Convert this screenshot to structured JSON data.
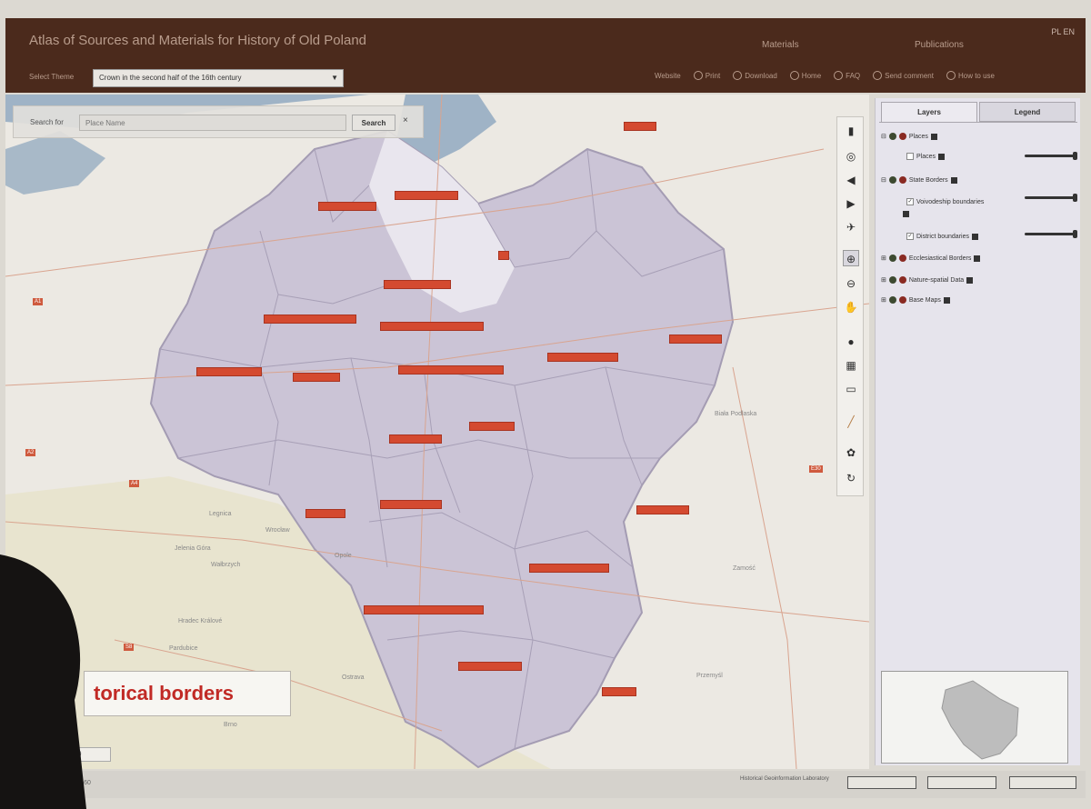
{
  "header": {
    "title": "Atlas of Sources and Materials for History of Old Poland",
    "nav": [
      "Materials",
      "Publications"
    ],
    "window_controls": "PL EN",
    "theme_label": "Select Theme",
    "theme_value": "Crown in the second half of the 16th century",
    "toolbar": [
      "Website",
      "Print",
      "Download",
      "Home",
      "FAQ",
      "Send comment",
      "How to use"
    ]
  },
  "search": {
    "label": "Search for",
    "placeholder": "Place Name",
    "button": "Search",
    "close": "×"
  },
  "map": {
    "place_labels": [
      "",
      "",
      "",
      "",
      "",
      "",
      "",
      "",
      "",
      "",
      "",
      "",
      "",
      "",
      "",
      "",
      "",
      "",
      "",
      "",
      ""
    ],
    "towns": [
      "Legnica",
      "Jelenia Góra",
      "Wałbrzych",
      "Opole",
      "Ostrava",
      "Pardubice",
      "Brno",
      "Zamość",
      "Przemyśl",
      "Biała Podlaska",
      "Wrocław",
      "Hradec Králové"
    ],
    "road_shields": [
      "A1",
      "A2",
      "A4",
      "E30",
      "S8"
    ],
    "caption": "torical borders",
    "scale": "1:1290"
  },
  "tools": [
    "select-icon",
    "zoom-full-icon",
    "prev-extent-icon",
    "next-extent-icon",
    "pan-to-icon",
    "zoom-in-icon",
    "zoom-out-icon",
    "hand-icon",
    "identify-icon",
    "layers-icon",
    "comment-icon",
    "ruler-icon",
    "tree-icon",
    "refresh-icon"
  ],
  "panel": {
    "tab_layers": "Layers",
    "tab_legend": "Legend",
    "layers": [
      {
        "name": "Places",
        "indent": 0
      },
      {
        "name": "Places",
        "indent": 1
      },
      {
        "name": "State Borders",
        "indent": 0
      },
      {
        "name": "Voivodeship boundaries",
        "indent": 1
      },
      {
        "name": "District boundaries",
        "indent": 1
      },
      {
        "name": "Ecclesiastical Borders",
        "indent": 0
      },
      {
        "name": "Nature-spatial Data",
        "indent": 0
      },
      {
        "name": "Base Maps",
        "indent": 0
      }
    ]
  },
  "footer": {
    "coords": "X: 726660",
    "credit": "Historical Geoinformation Laboratory"
  },
  "colors": {
    "header_bg": "#4b2a1c",
    "label_bg": "#d44a30",
    "crown_area": "#c9c3d4",
    "caption_text": "#c12a25"
  }
}
